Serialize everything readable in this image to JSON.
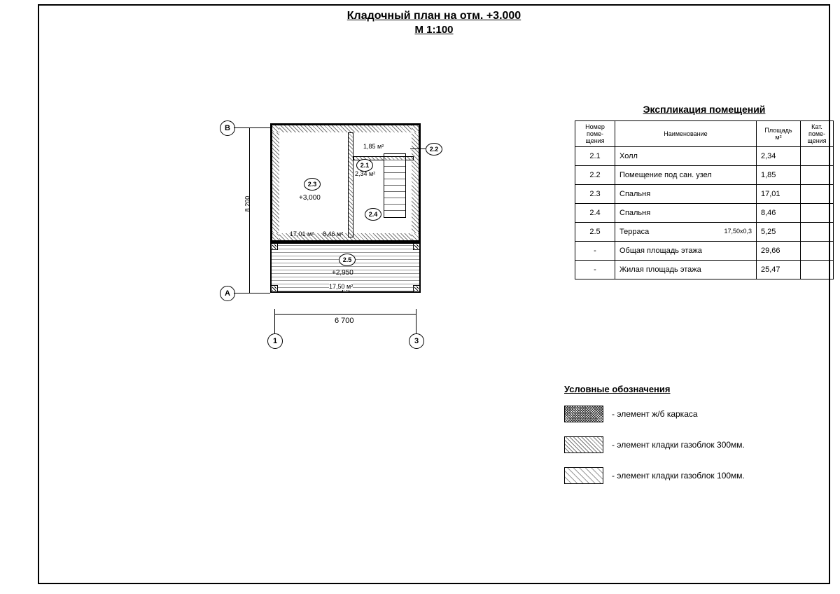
{
  "title": "Кладочный план на отм. +3.000",
  "scale": "М 1:100",
  "plan": {
    "width_mm": "6 700",
    "height_mm": "8 200",
    "level_main": "+3,000",
    "level_terrace": "+2,950",
    "grid_labels": {
      "A": "A",
      "B": "B",
      "1": "1",
      "3": "3"
    },
    "rooms": [
      {
        "tag": "2.1",
        "area": "2,34 м²"
      },
      {
        "tag": "2.2",
        "area": "1,85 м²"
      },
      {
        "tag": "2.3",
        "area": "17,01 м²"
      },
      {
        "tag": "2.4",
        "area": "8,46 м²"
      },
      {
        "tag": "2.5",
        "area": "17,50 м²"
      }
    ],
    "area_2_2_lbl": "1,85 м²",
    "area_2_1_lbl": "2,34 м²",
    "area_2_3_lbl": "17,01 м²",
    "area_2_4_lbl": "8,46 м²",
    "area_2_5_lbl": "17,50 м²"
  },
  "explication": {
    "title": "Экспликация помещений",
    "headers": {
      "num": "Номер поме- щения",
      "name": "Наименование",
      "area": "Площадь м²",
      "cat": "Кат. поме- щения"
    },
    "rows": [
      {
        "num": "2.1",
        "name": "Холл",
        "area": "2,34",
        "cat": ""
      },
      {
        "num": "2.2",
        "name": "Помещение под сан. узел",
        "area": "1,85",
        "cat": ""
      },
      {
        "num": "2.3",
        "name": "Спальня",
        "area": "17,01",
        "cat": ""
      },
      {
        "num": "2.4",
        "name": "Спальня",
        "area": "8,46",
        "cat": ""
      },
      {
        "num": "2.5",
        "name": "Терраса",
        "area": "5,25",
        "cat": "",
        "note": "17,50x0,3"
      },
      {
        "num": "-",
        "name": "Общая площадь этажа",
        "area": "29,66",
        "cat": ""
      },
      {
        "num": "-",
        "name": "Жилая площадь этажа",
        "area": "25,47",
        "cat": ""
      }
    ]
  },
  "legend": {
    "title": "Условные обозначения",
    "items": [
      {
        "label": "- элемент ж/б каркаса",
        "style": "dense"
      },
      {
        "label": "- элемент кладки газоблок 300мм.",
        "style": "med"
      },
      {
        "label": "- элемент кладки газоблок 100мм.",
        "style": "fine"
      }
    ]
  },
  "colors": {
    "line": "#000000",
    "bg": "#ffffff"
  }
}
